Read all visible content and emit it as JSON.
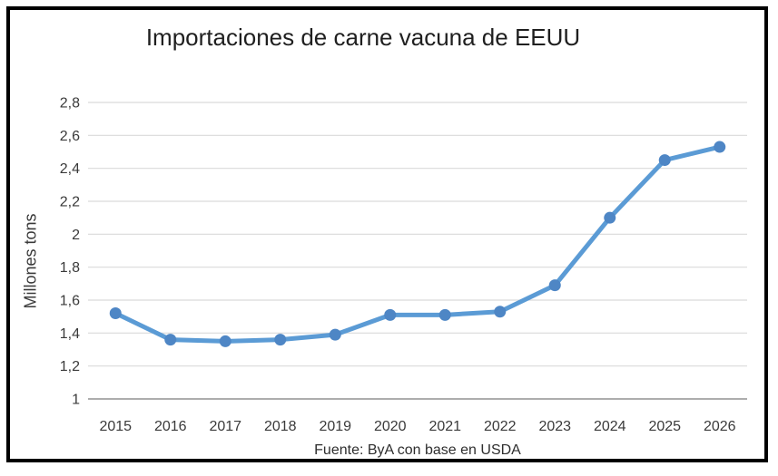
{
  "chart_data": {
    "type": "line",
    "title": "Importaciones de carne vacuna de EEUU",
    "ylabel": "Millones tons",
    "xlabel": "",
    "source": "Fuente: ByA con base en USDA",
    "categories": [
      "2015",
      "2016",
      "2017",
      "2018",
      "2019",
      "2020",
      "2021",
      "2022",
      "2023",
      "2024",
      "2025",
      "2026"
    ],
    "values": [
      1.52,
      1.36,
      1.35,
      1.36,
      1.39,
      1.51,
      1.51,
      1.53,
      1.69,
      2.1,
      2.45,
      2.53
    ],
    "ylim": [
      1,
      2.8
    ],
    "yticks": [
      {
        "value": 1,
        "label": "1"
      },
      {
        "value": 1.2,
        "label": "1,2"
      },
      {
        "value": 1.4,
        "label": "1,4"
      },
      {
        "value": 1.6,
        "label": "1,6"
      },
      {
        "value": 1.8,
        "label": "1,8"
      },
      {
        "value": 2,
        "label": "2"
      },
      {
        "value": 2.2,
        "label": "2,2"
      },
      {
        "value": 2.4,
        "label": "2,4"
      },
      {
        "value": 2.6,
        "label": "2,6"
      },
      {
        "value": 2.8,
        "label": "2,8"
      }
    ],
    "grid": true,
    "legend": false,
    "marker": "circle",
    "colors": {
      "line": "#5B9BD5",
      "marker": "#4E86C5",
      "gridline": "#D9D9D9",
      "axis": "#ADADAD",
      "tick_text": "#3A3A3A",
      "frame_border": "#000000"
    }
  }
}
